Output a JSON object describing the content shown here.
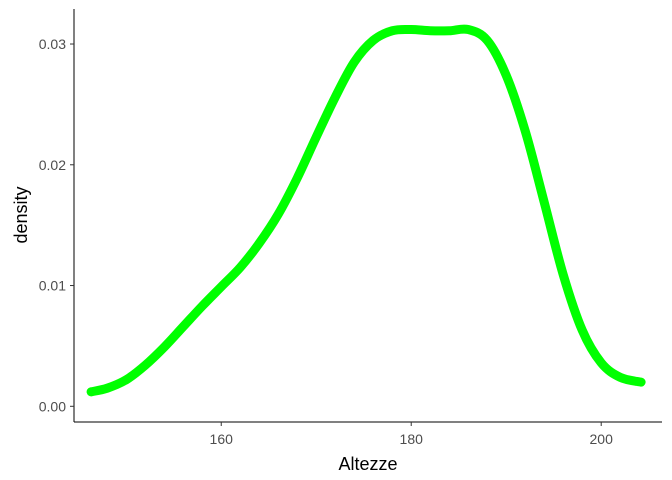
{
  "chart_data": {
    "type": "area",
    "title": "",
    "xlabel": "Altezze",
    "ylabel": "density",
    "xlim": [
      144.5,
      206.4
    ],
    "ylim": [
      -0.0013,
      0.0329
    ],
    "x_ticks": [
      160,
      180,
      200
    ],
    "x_tick_labels": [
      "160",
      "180",
      "200"
    ],
    "y_ticks": [
      0.0,
      0.01,
      0.02,
      0.03
    ],
    "y_tick_labels": [
      "0.00",
      "0.01",
      "0.02",
      "0.03"
    ],
    "grid": false,
    "legend": "none",
    "line_color": "#00ff00",
    "series": [
      {
        "x": [
          146.3,
          148.0,
          150.0,
          152.0,
          154.0,
          156.0,
          158.0,
          160.0,
          162.0,
          164.0,
          166.0,
          168.0,
          170.0,
          172.0,
          174.0,
          176.0,
          178.0,
          180.0,
          182.0,
          184.0,
          186.0,
          188.0,
          190.0,
          192.0,
          194.0,
          196.0,
          198.0,
          200.0,
          202.0,
          204.2
        ],
        "y": [
          0.0012,
          0.0015,
          0.0022,
          0.0034,
          0.0049,
          0.0066,
          0.0083,
          0.0099,
          0.0115,
          0.0135,
          0.0159,
          0.0189,
          0.0223,
          0.0256,
          0.0285,
          0.0303,
          0.0311,
          0.0312,
          0.0311,
          0.0311,
          0.0312,
          0.0303,
          0.0274,
          0.0228,
          0.0169,
          0.0109,
          0.0063,
          0.0036,
          0.0024,
          0.002
        ]
      }
    ]
  }
}
